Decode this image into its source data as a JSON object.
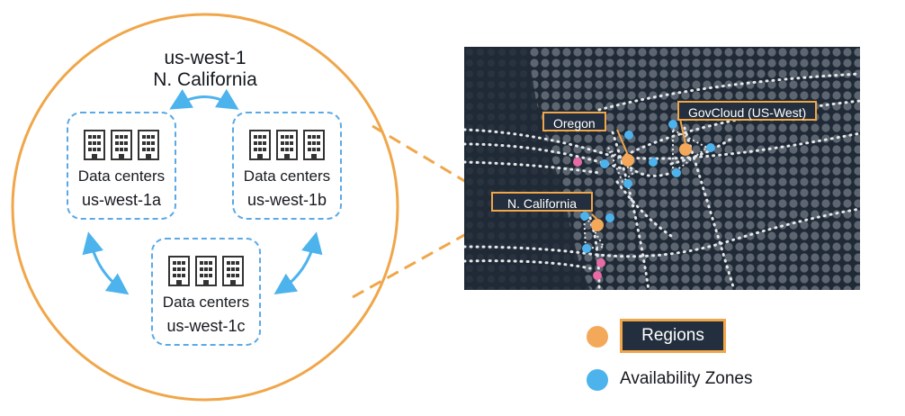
{
  "region": {
    "code": "us-west-1",
    "name": "N. California"
  },
  "availability_zones": [
    {
      "label": "Data centers",
      "name": "us-west-1a"
    },
    {
      "label": "Data centers",
      "name": "us-west-1b"
    },
    {
      "label": "Data centers",
      "name": "us-west-1c"
    }
  ],
  "map": {
    "labels": {
      "oregon": "Oregon",
      "govcloud": "GovCloud (US-West)",
      "ncalifornia": "N. California"
    }
  },
  "legend": {
    "regions": "Regions",
    "availability_zones": "Availability Zones"
  },
  "colors": {
    "region_dot": "#f4a95a",
    "az_dot": "#4db3ed",
    "edge_dot": "#e86aa6",
    "map_bg": "#232f3e",
    "accent_orange": "#f0a649",
    "az_border": "#5aa9e6"
  },
  "icons": [
    "data-center-building-icon",
    "bidirectional-arrow-icon"
  ]
}
